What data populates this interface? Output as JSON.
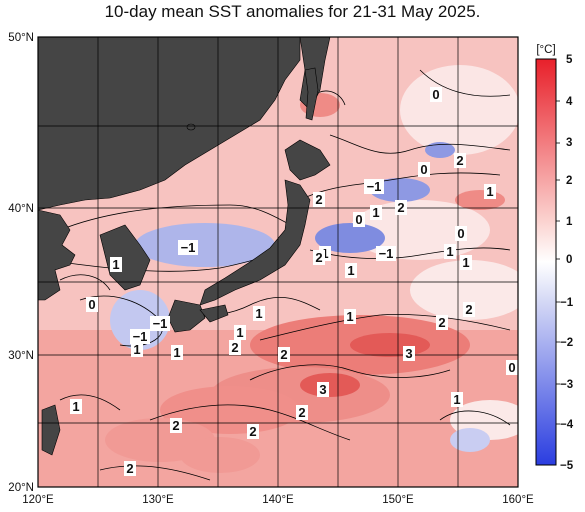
{
  "title": "10-day mean SST anomalies for 21-31 May 2025.",
  "map": {
    "lon_labels": [
      "120°E",
      "130°E",
      "140°E",
      "150°E",
      "160°E"
    ],
    "lat_labels": [
      "20°N",
      "30°N",
      "40°N",
      "50°N"
    ],
    "land_color": "#454545",
    "grid_color": "#000000"
  },
  "colorbar": {
    "unit": "[°C]",
    "ticks": [
      "5",
      "4",
      "3",
      "2",
      "1",
      "0",
      "−1",
      "−2",
      "−3",
      "−4",
      "−5"
    ],
    "warm_color": "#e8202a",
    "cold_color": "#2a3de0"
  },
  "contour_labels": [
    "0",
    "2",
    "1",
    "−1",
    "2",
    "1",
    "0",
    "2",
    "−1",
    "1",
    "1",
    "0",
    "−1",
    "2",
    "1",
    "0",
    "1",
    "2",
    "1",
    "1",
    "0",
    "−1",
    "1",
    "1",
    "−1",
    "2",
    "2",
    "1",
    "2",
    "3",
    "1",
    "3",
    "2",
    "1",
    "2",
    "2",
    "0",
    "2",
    "1"
  ]
}
